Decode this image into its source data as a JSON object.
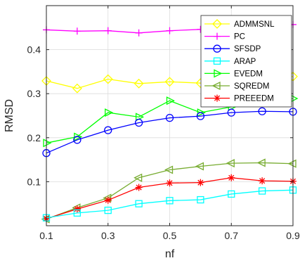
{
  "chart_data": {
    "type": "line",
    "xlabel": "nf",
    "ylabel": "RMSD",
    "xlim": [
      0.1,
      0.9
    ],
    "ylim": [
      0.0,
      0.5
    ],
    "grid": true,
    "legend_position": "top-right",
    "x": [
      0.1,
      0.2,
      0.3,
      0.4,
      0.5,
      0.6,
      0.7,
      0.8,
      0.9
    ],
    "x_ticks": [
      0.1,
      0.3,
      0.5,
      0.7,
      0.9
    ],
    "x_tick_labels": [
      "0.1",
      "0.3",
      "0.5",
      "0.7",
      "0.9"
    ],
    "y_ticks": [
      0.1,
      0.2,
      0.3,
      0.4
    ],
    "y_tick_labels": [
      "0.1",
      "0.2",
      "0.3",
      "0.4"
    ],
    "series": [
      {
        "name": "ADMMSNL",
        "color": "#ffff00",
        "marker": "diamond",
        "values": [
          0.329,
          0.312,
          0.333,
          0.323,
          0.327,
          0.324,
          0.331,
          0.335,
          0.339
        ]
      },
      {
        "name": "PC",
        "color": "#ff00ff",
        "marker": "plus",
        "values": [
          0.445,
          0.442,
          0.443,
          0.438,
          0.443,
          0.446,
          0.447,
          0.451,
          0.457
        ]
      },
      {
        "name": "SFSDP",
        "color": "#0000ff",
        "marker": "circle",
        "values": [
          0.165,
          0.195,
          0.217,
          0.234,
          0.245,
          0.249,
          0.257,
          0.26,
          0.259
        ]
      },
      {
        "name": "ARAP",
        "color": "#00ffff",
        "marker": "square",
        "values": [
          0.018,
          0.029,
          0.035,
          0.05,
          0.057,
          0.059,
          0.072,
          0.079,
          0.081
        ]
      },
      {
        "name": "EVEDM",
        "color": "#00ff00",
        "marker": "triangle-right",
        "values": [
          0.188,
          0.202,
          0.257,
          0.247,
          0.284,
          0.257,
          0.27,
          0.281,
          0.289
        ]
      },
      {
        "name": "SQREDM",
        "color": "#77ac30",
        "marker": "triangle-left",
        "values": [
          0.015,
          0.041,
          0.063,
          0.109,
          0.127,
          0.135,
          0.142,
          0.143,
          0.141
        ]
      },
      {
        "name": "PREEEDM",
        "color": "#ff0000",
        "marker": "asterisk",
        "values": [
          0.016,
          0.038,
          0.058,
          0.087,
          0.097,
          0.098,
          0.109,
          0.102,
          0.101
        ]
      }
    ]
  }
}
